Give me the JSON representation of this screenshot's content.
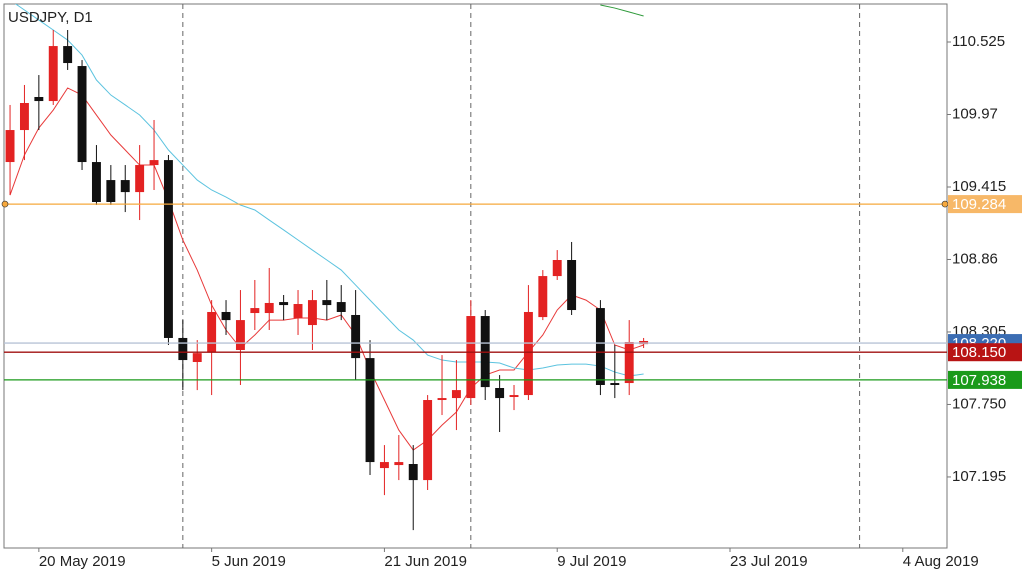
{
  "chart_data": {
    "type": "candlestick",
    "title": "USDJPY, D1",
    "xlim": [
      -0.42,
      65.07
    ],
    "ylim": [
      106.651,
      110.816
    ],
    "xticks": [
      {
        "value": 2,
        "label": "20 May 2019"
      },
      {
        "value": 14,
        "label": "5 Jun 2019"
      },
      {
        "value": 26,
        "label": "21 Jun 2019"
      },
      {
        "value": 38,
        "label": "9 Jul 2019"
      },
      {
        "value": 50,
        "label": "23 Jul 2019"
      },
      {
        "value": 62,
        "label": "4 Aug 2019"
      }
    ],
    "yticks": [
      107.195,
      {
        "value": 107.75,
        "label": "107.750"
      },
      108.305,
      108.86,
      109.415,
      109.97,
      110.525
    ],
    "separators": [
      12,
      32,
      59
    ],
    "bull_color": "#e32222",
    "bear_color": "#111111",
    "candles": {
      "x": [
        0,
        1,
        2,
        3,
        4,
        5,
        6,
        7,
        8,
        9,
        10,
        11,
        12,
        13,
        14,
        15,
        16,
        17,
        18,
        19,
        20,
        21,
        22,
        23,
        24,
        25,
        26,
        27,
        28,
        29,
        30,
        31,
        32,
        33,
        34,
        35,
        36,
        37,
        38,
        39,
        41,
        42,
        43,
        44
      ],
      "open": [
        109.606,
        109.851,
        110.104,
        110.073,
        110.494,
        110.341,
        109.606,
        109.468,
        109.468,
        109.376,
        109.583,
        109.621,
        108.259,
        108.075,
        108.151,
        108.458,
        108.167,
        108.45,
        108.45,
        108.534,
        108.412,
        108.358,
        108.549,
        108.534,
        108.435,
        108.105,
        107.263,
        107.286,
        107.294,
        107.171,
        107.784,
        107.799,
        107.799,
        108.427,
        107.876,
        107.807,
        107.822,
        108.419,
        108.733,
        108.856,
        108.488,
        107.914,
        107.914,
        108.212
      ],
      "high": [
        110.043,
        110.196,
        110.272,
        110.617,
        110.617,
        110.387,
        109.736,
        109.583,
        109.583,
        109.736,
        109.928,
        109.66,
        108.396,
        108.243,
        108.549,
        108.549,
        108.626,
        108.703,
        108.795,
        108.588,
        108.626,
        108.626,
        108.703,
        108.664,
        108.626,
        108.243,
        107.439,
        107.516,
        107.439,
        107.822,
        108.128,
        108.09,
        108.549,
        108.473,
        107.975,
        107.899,
        108.664,
        108.779,
        108.932,
        108.994,
        108.549,
        108.205,
        108.396,
        108.259
      ],
      "low": [
        109.353,
        109.621,
        109.851,
        110.043,
        110.311,
        109.545,
        109.277,
        109.277,
        109.223,
        109.162,
        109.392,
        108.205,
        107.86,
        107.86,
        107.822,
        108.282,
        107.899,
        108.32,
        108.32,
        108.396,
        108.282,
        108.167,
        108.396,
        108.396,
        107.937,
        107.21,
        107.056,
        107.171,
        106.788,
        107.095,
        107.669,
        107.554,
        107.746,
        107.784,
        107.539,
        107.707,
        107.784,
        108.396,
        108.703,
        108.435,
        107.822,
        107.799,
        107.822,
        108.182
      ],
      "close": [
        109.851,
        110.058,
        110.073,
        110.494,
        110.364,
        109.606,
        109.3,
        109.3,
        109.376,
        109.583,
        109.621,
        108.259,
        108.09,
        108.143,
        108.458,
        108.396,
        108.396,
        108.488,
        108.527,
        108.511,
        108.519,
        108.549,
        108.511,
        108.458,
        108.105,
        107.309,
        107.309,
        107.309,
        107.171,
        107.784,
        107.799,
        107.86,
        108.427,
        107.883,
        107.799,
        107.822,
        108.458,
        108.733,
        108.856,
        108.473,
        107.899,
        107.899,
        108.228,
        108.236
      ]
    },
    "ma_x": [
      0,
      1,
      2,
      3,
      4,
      5,
      6,
      7,
      8,
      9,
      10,
      11,
      12,
      13,
      14,
      15,
      16,
      17,
      18,
      19,
      20,
      21,
      22,
      23,
      24,
      25,
      26,
      27,
      28,
      29,
      30,
      31,
      32,
      33,
      34,
      35,
      36,
      37,
      38,
      39,
      40,
      41,
      42,
      43,
      44
    ],
    "lines": [
      {
        "color": "#e83a3a",
        "values": [
          109.353,
          109.66,
          109.867,
          110.004,
          110.173,
          110.119,
          109.966,
          109.813,
          109.698,
          109.583,
          109.583,
          109.315,
          109.009,
          108.779,
          108.511,
          108.32,
          108.182,
          108.282,
          108.396,
          108.396,
          108.412,
          108.412,
          108.396,
          108.435,
          108.282,
          108.014,
          107.784,
          107.554,
          107.401,
          107.478,
          107.592,
          107.692,
          107.876,
          107.975,
          108.014,
          108.014,
          108.151,
          108.282,
          108.473,
          108.588,
          108.549,
          108.473,
          108.205,
          108.167,
          108.205
        ]
      },
      {
        "color": "#5cc3df",
        "values": [
          110.846,
          110.77,
          110.693,
          110.617,
          110.54,
          110.425,
          110.234,
          110.119,
          110.043,
          109.966,
          109.851,
          109.698,
          109.583,
          109.468,
          109.392,
          109.338,
          109.277,
          109.239,
          109.162,
          109.086,
          109.009,
          108.932,
          108.856,
          108.779,
          108.664,
          108.549,
          108.435,
          108.32,
          108.243,
          108.128,
          108.09,
          108.075,
          108.075,
          108.075,
          108.067,
          108.029,
          108.014,
          108.029,
          108.052,
          108.059,
          108.059,
          108.044,
          107.998,
          107.968,
          107.983
        ]
      },
      {
        "color": "#2e9a3a",
        "values": [
          null,
          null,
          null,
          null,
          null,
          null,
          null,
          null,
          null,
          null,
          null,
          null,
          null,
          null,
          null,
          null,
          null,
          null,
          null,
          null,
          null,
          null,
          null,
          null,
          null,
          null,
          null,
          null,
          null,
          null,
          null,
          null,
          null,
          null,
          null,
          null,
          null,
          null,
          null,
          null,
          null,
          110.808,
          110.785,
          110.755,
          110.724
        ]
      }
    ],
    "price_lines": [
      {
        "price": 109.284,
        "color": "#f6a83c",
        "label_color": "#f7b868"
      },
      {
        "price": {
          "value": 108.22,
          "label": "108.220"
        },
        "color": "#b8c4d6",
        "label_color": "#3b6db3"
      },
      {
        "price": {
          "value": 108.15,
          "label": "108.150"
        },
        "color": "#a01010",
        "label_color": "#b81414"
      },
      {
        "price": 107.938,
        "color": "#1a9a1a",
        "label_color": "#1a9a1a"
      }
    ]
  }
}
